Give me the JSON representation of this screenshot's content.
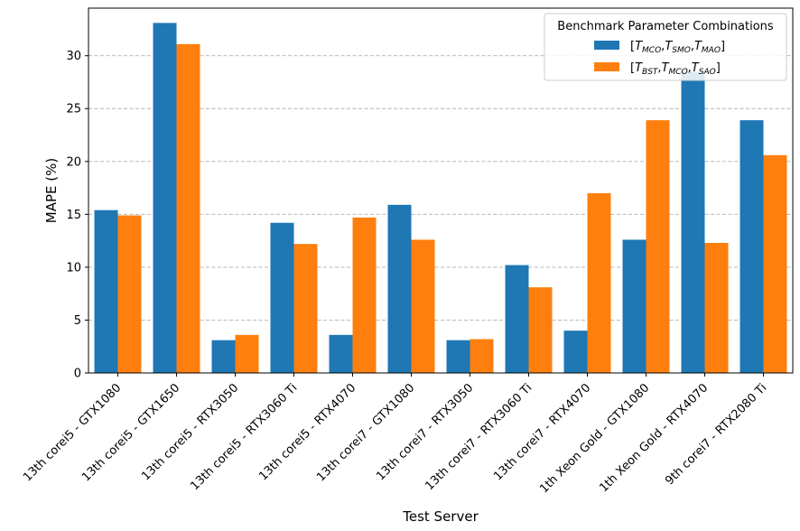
{
  "chart_data": {
    "type": "bar",
    "title": "",
    "xlabel": "Test Server",
    "ylabel": "MAPE (%)",
    "ylim": [
      0,
      34.5
    ],
    "yticks": [
      0,
      5,
      10,
      15,
      20,
      25,
      30
    ],
    "grid": "y-dashed",
    "legend_position": "top-right",
    "legend_title": "Benchmark Parameter Combinations",
    "categories": [
      "13th corei5 - GTX1080",
      "13th corei5 - GTX1650",
      "13th corei5 - RTX3050",
      "13th corei5 - RTX3060 Ti",
      "13th corei5 - RTX4070",
      "13th corei7 - GTX1080",
      "13th corei7 - RTX3050",
      "13th corei7 - RTX3060 Ti",
      "13th corei7 - RTX4070",
      "1th Xeon Gold - GTX1080",
      "1th Xeon Gold - RTX4070",
      "9th corei7 - RTX2080 Ti"
    ],
    "series": [
      {
        "name": "[T_MCO,T_SMO,T_MAO]",
        "legend_parts": [
          [
            "T",
            "MCO"
          ],
          [
            "T",
            "SMO"
          ],
          [
            "T",
            "MAO"
          ]
        ],
        "color": "#1f77b4",
        "values": [
          15.4,
          33.1,
          3.1,
          14.2,
          3.6,
          15.9,
          3.1,
          10.2,
          4.0,
          12.6,
          28.5,
          23.9
        ]
      },
      {
        "name": "[T_BST,T_MCO,T_SAO]",
        "legend_parts": [
          [
            "T",
            "BST"
          ],
          [
            "T",
            "MCO"
          ],
          [
            "T",
            "SAO"
          ]
        ],
        "color": "#ff7f0e",
        "values": [
          14.9,
          31.1,
          3.6,
          12.2,
          14.7,
          12.6,
          3.2,
          8.1,
          17.0,
          23.9,
          12.3,
          20.6
        ]
      }
    ]
  }
}
